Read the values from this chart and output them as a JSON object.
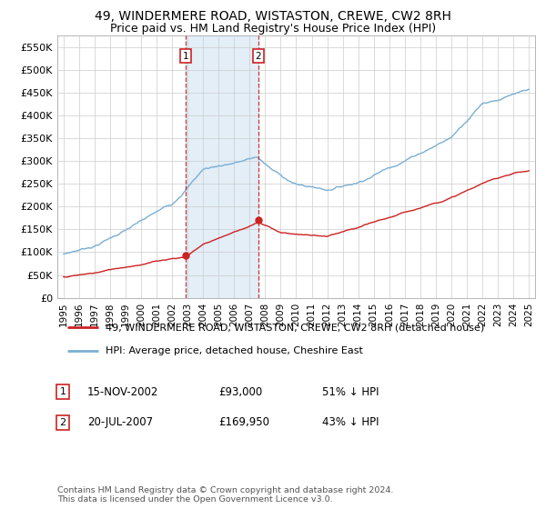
{
  "title": "49, WINDERMERE ROAD, WISTASTON, CREWE, CW2 8RH",
  "subtitle": "Price paid vs. HM Land Registry's House Price Index (HPI)",
  "ylabel_ticks": [
    "£0",
    "£50K",
    "£100K",
    "£150K",
    "£200K",
    "£250K",
    "£300K",
    "£350K",
    "£400K",
    "£450K",
    "£500K",
    "£550K"
  ],
  "ytick_values": [
    0,
    50000,
    100000,
    150000,
    200000,
    250000,
    300000,
    350000,
    400000,
    450000,
    500000,
    550000
  ],
  "ylim": [
    0,
    575000
  ],
  "xlim_start": 1994.6,
  "xlim_end": 2025.4,
  "xtick_years": [
    1995,
    1996,
    1997,
    1998,
    1999,
    2000,
    2001,
    2002,
    2003,
    2004,
    2005,
    2006,
    2007,
    2008,
    2009,
    2010,
    2011,
    2012,
    2013,
    2014,
    2015,
    2016,
    2017,
    2018,
    2019,
    2020,
    2021,
    2022,
    2023,
    2024,
    2025
  ],
  "hpi_color": "#7bafd4",
  "hpi_fill_color": "#c8dff0",
  "price_color": "#cc2222",
  "marker_color": "#cc2222",
  "vline_color": "#cc2222",
  "background_color": "#ffffff",
  "grid_color": "#cccccc",
  "transaction1": {
    "label": "1",
    "date": "15-NOV-2002",
    "price": "£93,000",
    "note": "51% ↓ HPI",
    "year": 2002.88
  },
  "transaction2": {
    "label": "2",
    "date": "20-JUL-2007",
    "price": "£169,950",
    "note": "43% ↓ HPI",
    "year": 2007.55
  },
  "t1_price": 93000,
  "t2_price": 169950,
  "legend1": "49, WINDERMERE ROAD, WISTASTON, CREWE, CW2 8RH (detached house)",
  "legend2": "HPI: Average price, detached house, Cheshire East",
  "footnote": "Contains HM Land Registry data © Crown copyright and database right 2024.\nThis data is licensed under the Open Government Licence v3.0.",
  "title_fontsize": 10,
  "subtitle_fontsize": 9
}
